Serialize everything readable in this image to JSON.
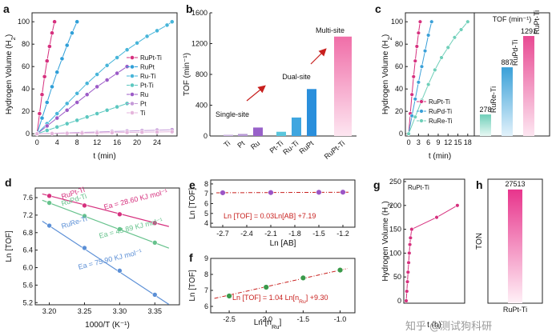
{
  "watermark": "知乎 @测试狗科研",
  "chart_data": [
    {
      "id": "a",
      "type": "line",
      "panel_label": "a",
      "xlabel": "t (min)",
      "ylabel": "Hydrogen Volume (H₂)",
      "xlim": [
        -1,
        28
      ],
      "ylim": [
        -2,
        108
      ],
      "xticks": [
        0,
        4,
        8,
        12,
        16,
        20,
        24
      ],
      "yticks": [
        0,
        20,
        40,
        60,
        80,
        100
      ],
      "series": [
        {
          "name": "RuPt-Ti",
          "color": "#d6307e",
          "x": [
            0,
            0.5,
            1,
            1.5,
            2,
            2.5,
            3,
            3.5
          ],
          "y": [
            0,
            18,
            35,
            51,
            65,
            78,
            90,
            100
          ]
        },
        {
          "name": "RuPt",
          "color": "#2f9fd8",
          "x": [
            0,
            1,
            2,
            3,
            4,
            5,
            6,
            7,
            8
          ],
          "y": [
            0,
            14,
            28,
            42,
            55,
            67,
            79,
            90,
            100
          ]
        },
        {
          "name": "Ru-Ti",
          "color": "#47b5d9",
          "x": [
            0,
            2,
            4,
            6,
            8,
            10,
            12,
            14,
            16,
            18,
            20,
            22,
            24,
            26,
            27
          ],
          "y": [
            0,
            9,
            18,
            27,
            36,
            45,
            53,
            61,
            68,
            75,
            81,
            87,
            92,
            97,
            100
          ]
        },
        {
          "name": "Pt-Ti",
          "color": "#5cc8c0",
          "x": [
            0,
            2,
            4,
            6,
            8,
            10,
            12,
            14,
            16,
            18
          ],
          "y": [
            0,
            3,
            6,
            9,
            12,
            15,
            18,
            21,
            24,
            27
          ]
        },
        {
          "name": "Ru",
          "color": "#9c5bc7",
          "x": [
            0,
            2,
            4,
            6,
            8,
            10,
            12,
            14,
            16,
            18
          ],
          "y": [
            0,
            7,
            14,
            21,
            28,
            35,
            42,
            48,
            54,
            60
          ]
        },
        {
          "name": "Pt",
          "color": "#c49ad8",
          "x": [
            0,
            3,
            6,
            9,
            12,
            15,
            18,
            21,
            24,
            27
          ],
          "y": [
            0,
            0.4,
            0.8,
            1.2,
            1.6,
            2,
            2.4,
            2.8,
            3.2,
            3.6
          ]
        },
        {
          "name": "Ti",
          "color": "#e5b6dc",
          "x": [
            0,
            3,
            6,
            9,
            12,
            15,
            18,
            21,
            24,
            27
          ],
          "y": [
            0,
            0.2,
            0.4,
            0.6,
            0.8,
            1,
            1.2,
            1.4,
            1.6,
            1.8
          ]
        }
      ]
    },
    {
      "id": "b",
      "type": "bar",
      "panel_label": "b",
      "xlabel": "",
      "ylabel": "TOF (min⁻¹)",
      "ylim": [
        0,
        1600
      ],
      "yticks": [
        0,
        400,
        800,
        1200,
        1600
      ],
      "categories": [
        "Ti",
        "Pt",
        "Ru",
        "Pt-Ti",
        "Ru-Ti",
        "RuPt",
        "RuPt-Ti"
      ],
      "values": [
        16,
        27,
        110,
        55,
        240,
        610,
        1291
      ],
      "colors": [
        "#c9b3e0",
        "#b79ad6",
        "#9861c9",
        "#5ac6dd",
        "#3fa6e0",
        "#2a8fdc",
        "#f06ea8"
      ],
      "annotations": [
        "Single-site",
        "Dual-site",
        "Multi-site"
      ]
    },
    {
      "id": "c",
      "type": "line",
      "panel_label": "c",
      "xlabel": "t (min)",
      "ylabel": "Hydrogen Volume (H₂)",
      "xlim": [
        -1,
        20
      ],
      "ylim": [
        -2,
        108
      ],
      "xticks": [
        0,
        3,
        6,
        9,
        12,
        15,
        18
      ],
      "yticks": [
        0,
        20,
        40,
        60,
        80,
        100
      ],
      "series": [
        {
          "name": "RuPt-Ti",
          "color": "#d6307e",
          "x": [
            0,
            0.5,
            1,
            1.5,
            2,
            2.5,
            3,
            3.5
          ],
          "y": [
            0,
            18,
            35,
            51,
            65,
            78,
            90,
            100
          ]
        },
        {
          "name": "RuPd-Ti",
          "color": "#3aa0d8",
          "x": [
            0,
            1,
            2,
            3,
            4,
            5,
            6,
            7
          ],
          "y": [
            0,
            16,
            31,
            46,
            60,
            74,
            88,
            100
          ]
        },
        {
          "name": "RuRe-Ti",
          "color": "#6fcfb9",
          "x": [
            0,
            2,
            4,
            6,
            8,
            10,
            12,
            14,
            16,
            18
          ],
          "y": [
            0,
            15,
            30,
            44,
            57,
            68,
            77,
            86,
            93,
            100
          ]
        }
      ],
      "inset": {
        "title": "TOF (min⁻¹)",
        "categories": [
          "RuRe-Ti",
          "RuPd-Ti",
          "RuPt-Ti"
        ],
        "values": [
          278,
          887,
          1291
        ],
        "colors": [
          "#6fcfb9",
          "#3aa0d8",
          "#e84a93"
        ],
        "value_labels": [
          "278",
          "887",
          "1291"
        ]
      }
    },
    {
      "id": "d",
      "type": "scatter",
      "panel_label": "d",
      "xlabel": "1000/T (K⁻¹)",
      "ylabel": "Ln [TOF]",
      "xlim": [
        3.18,
        3.385
      ],
      "ylim": [
        5.15,
        7.82
      ],
      "xticks": [
        3.2,
        3.25,
        3.3,
        3.35
      ],
      "yticks": [
        5.2,
        5.6,
        6.0,
        6.4,
        6.8,
        7.2,
        7.6
      ],
      "series": [
        {
          "name": "RuPt-Ti",
          "color": "#d6307e",
          "x": [
            3.2,
            3.25,
            3.3,
            3.35
          ],
          "y": [
            7.64,
            7.42,
            7.22,
            7.02
          ],
          "annotation": "Ea = 28.60 KJ mol⁻¹"
        },
        {
          "name": "RuPd-Ti",
          "color": "#66c28c",
          "x": [
            3.2,
            3.25,
            3.3,
            3.35
          ],
          "y": [
            7.48,
            7.18,
            6.88,
            6.57
          ],
          "annotation": "Ea = 43.89 KJ mol⁻¹"
        },
        {
          "name": "RuRe-Ti",
          "color": "#5b8fd6",
          "x": [
            3.2,
            3.25,
            3.3,
            3.35
          ],
          "y": [
            6.96,
            6.45,
            5.93,
            5.38
          ],
          "annotation": "Ea = 75.90 KJ mol⁻¹"
        }
      ]
    },
    {
      "id": "e",
      "type": "scatter",
      "panel_label": "e",
      "xlabel": "Ln [AB]",
      "ylabel": "Ln [TOF]",
      "xlim": [
        -2.85,
        -1.05
      ],
      "ylim": [
        3.6,
        8.4
      ],
      "xticks": [
        -2.7,
        -2.4,
        -2.1,
        -1.8,
        -1.5,
        -1.2
      ],
      "yticks": [
        4,
        5,
        6,
        7,
        8
      ],
      "x": [
        -2.7,
        -2.1,
        -1.5,
        -1.2
      ],
      "y": [
        7.1,
        7.12,
        7.15,
        7.16
      ],
      "point_color": "#9b55c6",
      "fit_color": "#c8201e",
      "equation": "Ln [TOF] = 0.03Ln[AB] +7.19"
    },
    {
      "id": "f",
      "type": "scatter",
      "panel_label": "f",
      "xlabel": "Ln [n_Ru]",
      "ylabel": "Ln [TOF]",
      "xlim": [
        -2.75,
        -0.8
      ],
      "ylim": [
        5.6,
        9.0
      ],
      "xticks": [
        -2.5,
        -2.0,
        -1.5,
        -1.0
      ],
      "yticks": [
        6,
        7,
        8,
        9
      ],
      "x": [
        -2.5,
        -2.0,
        -1.5,
        -1.0
      ],
      "y": [
        6.65,
        7.2,
        7.78,
        8.27
      ],
      "point_color": "#3a9a4a",
      "fit_color": "#c8201e",
      "equation": "Ln [TOF] = 1.04 Ln[n_Ru] +9.30"
    },
    {
      "id": "g",
      "type": "line",
      "panel_label": "g",
      "xlabel": "t (h)",
      "ylabel": "Hydrogen Volume (H₂)",
      "xlim": [
        -0.2,
        4.8
      ],
      "ylim": [
        -5,
        255
      ],
      "yticks": [
        0,
        50,
        100,
        150,
        200,
        250
      ],
      "legend": "RuPt-Ti",
      "series": [
        {
          "name": "RuPt-Ti",
          "color": "#d6307e",
          "x": [
            0,
            0.05,
            0.1,
            0.15,
            0.2,
            0.25,
            0.3,
            0.35,
            0.45,
            2.5,
            4.2
          ],
          "y": [
            0,
            20,
            40,
            60,
            80,
            100,
            118,
            132,
            150,
            175,
            200
          ]
        }
      ]
    },
    {
      "id": "h",
      "type": "bar",
      "panel_label": "h",
      "xlabel": "",
      "ylabel": "TON",
      "categories": [
        "RuPt-Ti"
      ],
      "values": [
        27513
      ],
      "ylim": [
        0,
        30000
      ],
      "value_label": "27513",
      "color": "#e63a8c"
    }
  ]
}
